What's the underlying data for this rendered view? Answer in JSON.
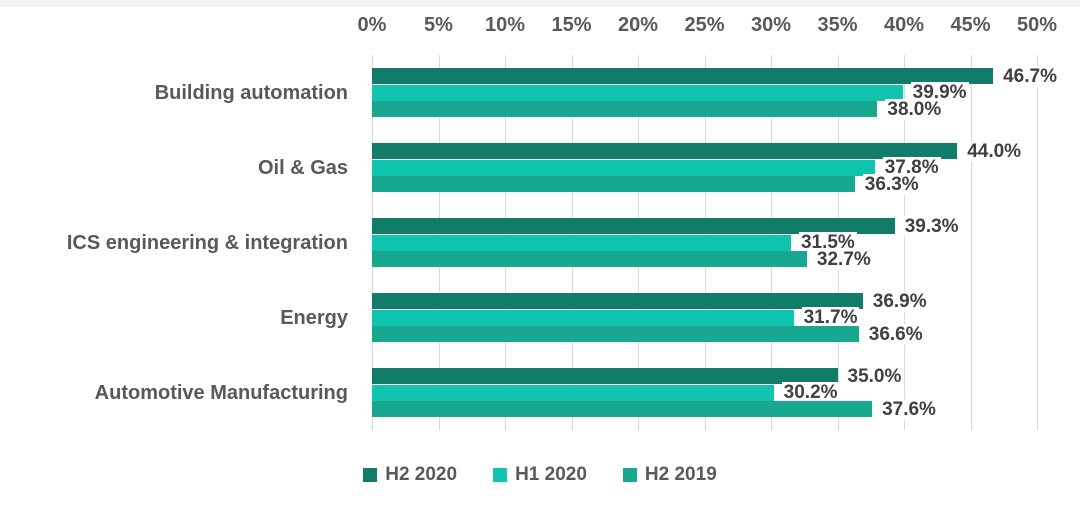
{
  "chart_data": {
    "type": "bar",
    "orientation": "horizontal",
    "title": "",
    "xlabel": "",
    "ylabel": "",
    "xlim": [
      0,
      50
    ],
    "x_tick_step": 5,
    "x_ticks": [
      "0%",
      "5%",
      "10%",
      "15%",
      "20%",
      "25%",
      "30%",
      "35%",
      "40%",
      "45%",
      "50%"
    ],
    "grid": true,
    "legend_position": "bottom",
    "categories": [
      "Building automation",
      "Oil & Gas",
      "ICS engineering & integration",
      "Energy",
      "Automotive Manufacturing"
    ],
    "series": [
      {
        "name": "H2 2020",
        "color": "#127c6b",
        "values": [
          46.7,
          44.0,
          39.3,
          36.9,
          35.0
        ]
      },
      {
        "name": "H1 2020",
        "color": "#10c4b0",
        "values": [
          39.9,
          37.8,
          31.5,
          31.7,
          30.2
        ]
      },
      {
        "name": "H2 2019",
        "color": "#18a78f",
        "values": [
          38.0,
          36.3,
          32.7,
          36.6,
          37.6
        ]
      }
    ],
    "value_labels": [
      [
        "46.7%",
        "44.0%",
        "39.3%",
        "36.9%",
        "35.0%"
      ],
      [
        "39.9%",
        "37.8%",
        "31.5%",
        "31.7%",
        "30.2%"
      ],
      [
        "38.0%",
        "36.3%",
        "32.7%",
        "36.6%",
        "37.6%"
      ]
    ],
    "colors": {
      "gridline": "#d9d9d9",
      "tick_text": "#595959",
      "category_text": "#595959",
      "value_text": "#404040",
      "legend_text": "#595959",
      "background": "#ffffff"
    }
  }
}
